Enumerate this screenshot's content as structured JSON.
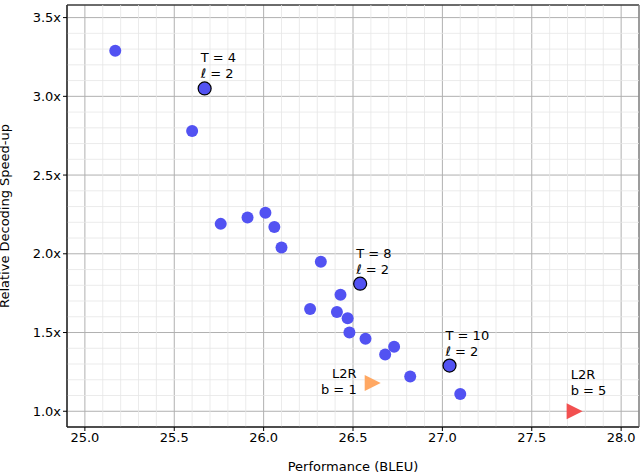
{
  "chart_data": {
    "type": "scatter",
    "xlabel": "Performance (BLEU)",
    "ylabel": "Relative Decoding Speed-up",
    "xlim": [
      24.9,
      28.1
    ],
    "ylim": [
      0.9,
      3.58
    ],
    "xticks": [
      {
        "value": 25,
        "label": "25.0"
      },
      {
        "value": 25.5,
        "label": "25.5"
      },
      {
        "value": 26,
        "label": "26.0"
      },
      {
        "value": 26.5,
        "label": "26.5"
      },
      {
        "value": 27,
        "label": "27.0"
      },
      {
        "value": 27.5,
        "label": "27.5"
      },
      {
        "value": 28,
        "label": "28.0"
      }
    ],
    "yticks": [
      {
        "value": 1,
        "label": "1.0x"
      },
      {
        "value": 1.5,
        "label": "1.5x"
      },
      {
        "value": 2,
        "label": "2.0x"
      },
      {
        "value": 2.5,
        "label": "2.5x"
      },
      {
        "value": 3,
        "label": "3.0x"
      },
      {
        "value": 3.5,
        "label": "3.5x"
      }
    ],
    "grid": true,
    "series": [
      {
        "color": "#5252f2",
        "marker": "circle",
        "x": [
          25.17,
          25.6,
          25.76,
          25.91,
          26.01,
          26.06,
          26.1,
          26.32,
          26.26,
          26.43,
          26.41,
          26.47,
          26.48,
          26.57,
          26.73,
          26.68,
          26.82,
          27.1
        ],
        "values": [
          3.29,
          2.78,
          2.19,
          2.23,
          2.26,
          2.17,
          2.04,
          1.95,
          1.65,
          1.74,
          1.63,
          1.59,
          1.5,
          1.46,
          1.41,
          1.36,
          1.22,
          1.11
        ]
      },
      {
        "color": "#5252f2",
        "marker": "circle_outlined",
        "x": [
          25.67,
          26.54,
          27.04
        ],
        "values": [
          3.05,
          1.81,
          1.29
        ],
        "point_labels": [
          "T = 4\nℓ = 2",
          "T = 8\nℓ = 2",
          "T = 10\nℓ = 2"
        ]
      },
      {
        "color": "#ffa863",
        "marker": "triangle_right",
        "x": [
          26.61
        ],
        "values": [
          1.18
        ],
        "point_labels": [
          "L2R\nb = 1"
        ]
      },
      {
        "color": "#f25050",
        "marker": "triangle_right",
        "x": [
          27.74
        ],
        "values": [
          1.0
        ],
        "point_labels": [
          "L2R\nb = 5"
        ]
      }
    ]
  }
}
